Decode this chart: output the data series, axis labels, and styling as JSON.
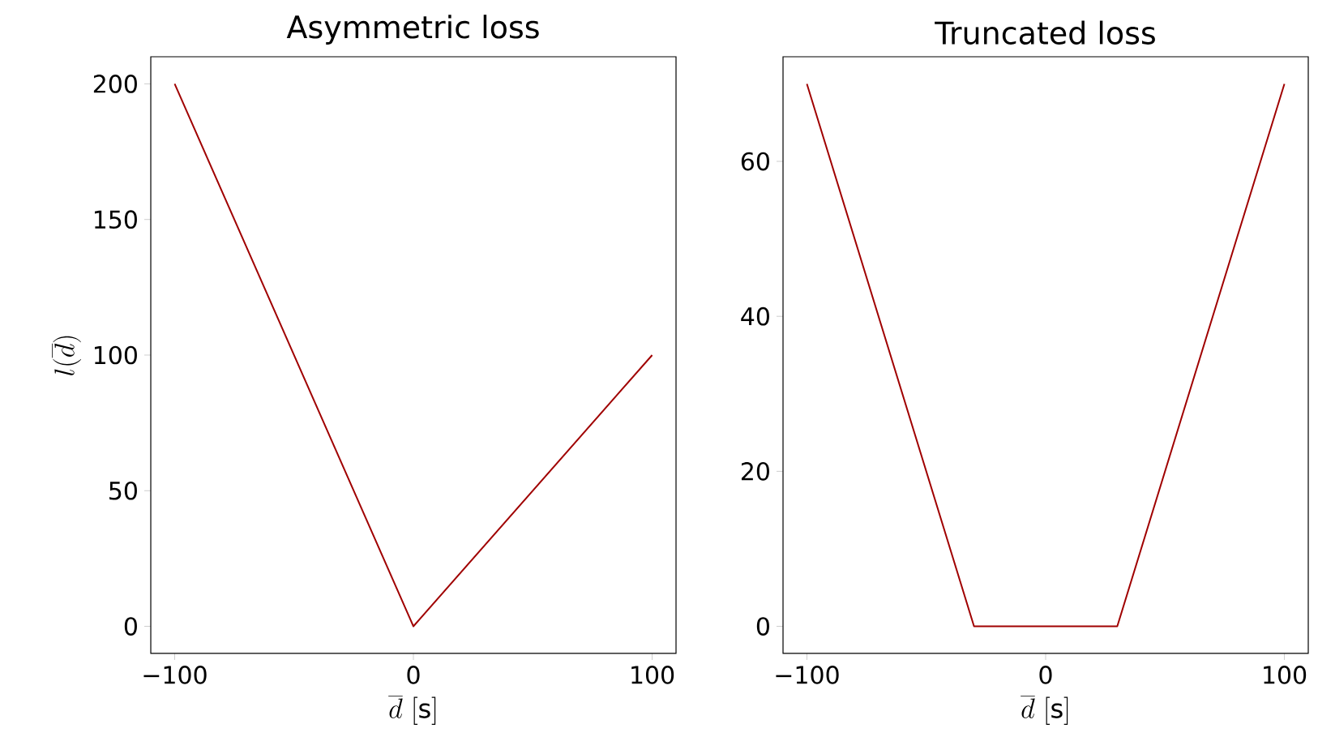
{
  "chart_data": [
    {
      "type": "line",
      "title": "Asymmetric loss",
      "xlabel": "\\overline{d}\\ [\\mathrm{s}]",
      "ylabel": "l(\\overline{d})",
      "x": [
        -100,
        0,
        100
      ],
      "series": [
        {
          "color": "#a00000",
          "values": [
            200,
            0,
            100
          ]
        }
      ],
      "xlim": [
        -110,
        110
      ],
      "ylim": [
        -10,
        210
      ],
      "xticks": [
        {
          "value": -100,
          "label": "−100"
        },
        0,
        100
      ],
      "yticks": [
        0,
        50,
        100,
        150,
        200
      ]
    },
    {
      "type": "line",
      "title": "Truncated loss",
      "xlabel": "\\overline{d}\\ [\\mathrm{s}]",
      "x": [
        -100,
        -30,
        30,
        100
      ],
      "series": [
        {
          "color": "#a00000",
          "values": [
            70,
            0,
            0,
            70
          ]
        }
      ],
      "xlim": [
        -110,
        110
      ],
      "ylim": [
        -3.5,
        73.5
      ],
      "xticks": [
        {
          "value": -100,
          "label": "−100"
        },
        0,
        100
      ],
      "yticks": [
        0,
        20,
        40,
        60
      ]
    }
  ]
}
